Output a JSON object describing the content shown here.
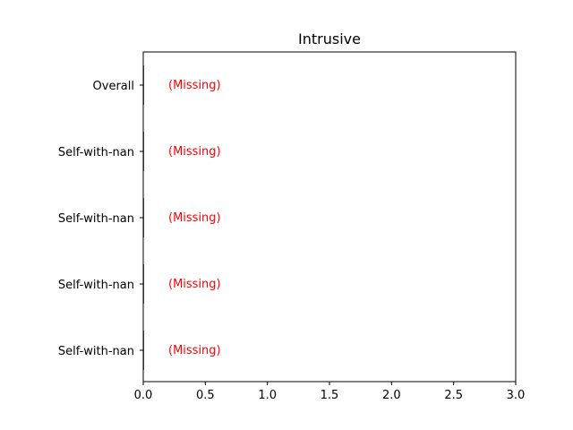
{
  "chart_data": {
    "type": "bar",
    "orientation": "horizontal",
    "title": "Intrusive",
    "xlabel": "",
    "ylabel": "",
    "xlim": [
      0,
      3.0
    ],
    "x_ticks": [
      0.0,
      0.5,
      1.0,
      1.5,
      2.0,
      2.5,
      3.0
    ],
    "x_tick_labels": [
      "0.0",
      "0.5",
      "1.0",
      "1.5",
      "2.0",
      "2.5",
      "3.0"
    ],
    "categories": [
      "Overall",
      "Self-with-nan",
      "Self-with-nan",
      "Self-with-nan",
      "Self-with-nan"
    ],
    "values": [
      0,
      0,
      0,
      0,
      0
    ],
    "bar_annotations": [
      "(Missing)",
      "(Missing)",
      "(Missing)",
      "(Missing)",
      "(Missing)"
    ],
    "annotation_color": "#ff0000",
    "bar_color": "#000000",
    "grid": false,
    "legend": "none"
  }
}
